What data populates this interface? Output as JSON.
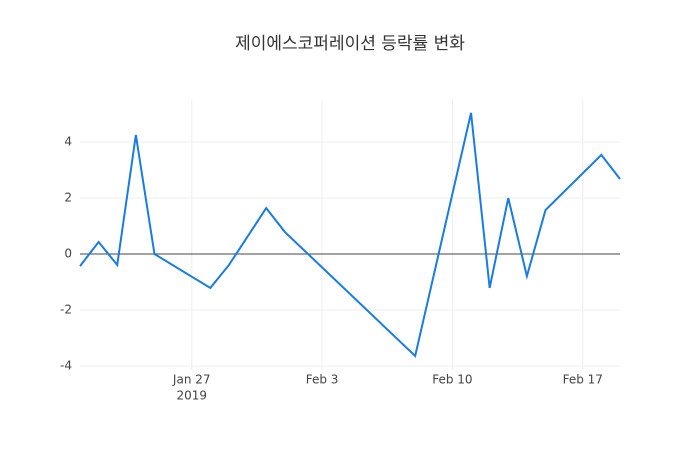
{
  "chart_data": {
    "type": "line",
    "title": "제이에스코퍼레이션 등락률 변화",
    "x": [
      "2019-01-21",
      "2019-01-22",
      "2019-01-23",
      "2019-01-24",
      "2019-01-25",
      "2019-01-28",
      "2019-01-29",
      "2019-01-31",
      "2019-02-01",
      "2019-02-08",
      "2019-02-11",
      "2019-02-12",
      "2019-02-13",
      "2019-02-14",
      "2019-02-15",
      "2019-02-18",
      "2019-02-19"
    ],
    "series": [
      {
        "color": "#1a7be0",
        "values": [
          -0.43,
          0.43,
          -0.39,
          4.25,
          0,
          -1.21,
          -0.39,
          1.64,
          0.79,
          -3.64,
          5.04,
          -1.21,
          2.0,
          -0.79,
          1.57,
          3.54,
          2.68
        ]
      }
    ],
    "xlim": [
      "2019-01-21",
      "2019-02-19"
    ],
    "xticks": [
      {
        "value": "2019-01-27",
        "label": "Jan 27"
      },
      {
        "value": "2019-02-03",
        "label": "Feb 3"
      },
      {
        "value": "2019-02-10",
        "label": "Feb 10"
      },
      {
        "value": "2019-02-17",
        "label": "Feb 17"
      }
    ],
    "x_year_label": "2019",
    "ylim": [
      -4.14,
      5.5
    ],
    "yticks": [
      -4,
      -2,
      0,
      2,
      4
    ],
    "grid": true,
    "zero_line": true
  }
}
